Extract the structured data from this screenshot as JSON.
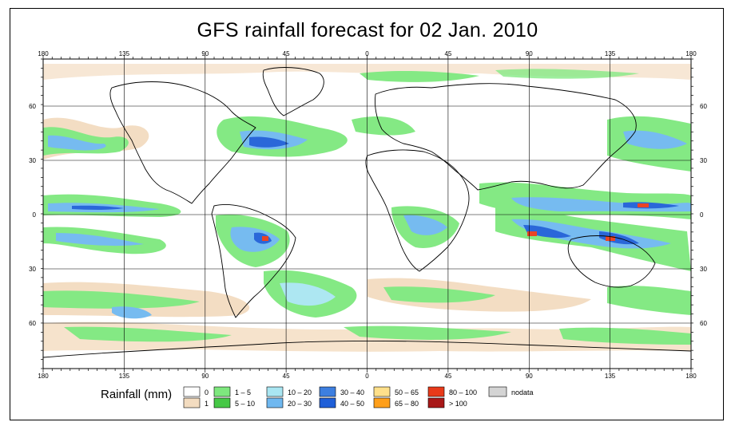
{
  "title": "GFS rainfall forecast for 02 Jan. 2010",
  "map": {
    "lon_ticks": [
      "180",
      "135",
      "90",
      "45",
      "0",
      "45",
      "90",
      "135",
      "180"
    ],
    "lat_ticks": [
      "60",
      "30",
      "0",
      "30",
      "60"
    ],
    "colors": {
      "ocean": "#ffffff",
      "land_outline": "#000000",
      "grid": "#000000",
      "rain_1": "#f3dcc0",
      "rain_1_5": "#7ee87e",
      "rain_5_10": "#5cd85c",
      "rain_10_20": "#a9e6f2",
      "rain_20_30": "#6fb8f0",
      "rain_30_40": "#3d7fe0",
      "rain_40_50": "#1f5fd8",
      "rain_60_100": "#e83a1a",
      "rain_gt_100": "#a81818"
    }
  },
  "legend": {
    "title": "Rainfall (mm)",
    "items": [
      {
        "label": "0",
        "color": "#ffffff"
      },
      {
        "label": "1",
        "color": "#f3dcc0"
      },
      {
        "label": "1 – 5",
        "color": "#7ee87e"
      },
      {
        "label": "5 – 10",
        "color": "#46c846"
      },
      {
        "label": "10 – 20",
        "color": "#a9e6f2"
      },
      {
        "label": "20 – 30",
        "color": "#6fb8f0"
      },
      {
        "label": "30 – 40",
        "color": "#3d7fe0"
      },
      {
        "label": "40 – 50",
        "color": "#1f5fd8"
      },
      {
        "label": "50 – 65",
        "color": "#ffe08a"
      },
      {
        "label": "65 – 80",
        "color": "#ff9f1a"
      },
      {
        "label": "80 – 100",
        "color": "#e83a1a"
      },
      {
        "label": "> 100",
        "color": "#a81818"
      },
      {
        "label": "nodata",
        "color": "#d4d4d4"
      }
    ]
  }
}
